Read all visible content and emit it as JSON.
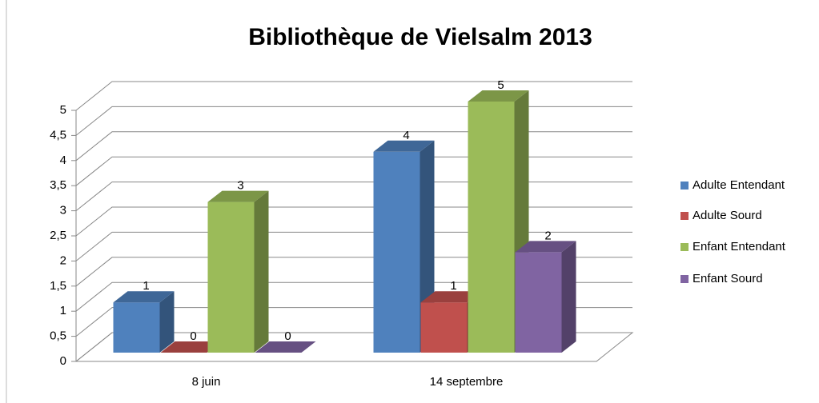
{
  "chart_data": {
    "type": "bar3d",
    "title": "Bibliothèque de Vielsalm 2013",
    "categories": [
      "8 juin",
      "14 septembre"
    ],
    "series": [
      {
        "name": "Adulte Entendant",
        "color": "#4f81bd",
        "values": [
          1,
          4
        ]
      },
      {
        "name": "Adulte Sourd",
        "color": "#c0504d",
        "values": [
          0,
          1
        ]
      },
      {
        "name": "Enfant Entendant",
        "color": "#9bbb59",
        "values": [
          3,
          5
        ]
      },
      {
        "name": "Enfant Sourd",
        "color": "#8064a2",
        "values": [
          0,
          2
        ]
      }
    ],
    "ylim": [
      0,
      5
    ],
    "yticks": [
      0,
      {
        "value": 0.5,
        "label": "0,5"
      },
      1,
      {
        "value": 1.5,
        "label": "1,5"
      },
      2,
      {
        "value": 2.5,
        "label": "2,5"
      },
      3,
      {
        "value": 3.5,
        "label": "3,5"
      },
      4,
      {
        "value": 4.5,
        "label": "4,5"
      },
      5
    ],
    "grid": true,
    "legend": "right"
  }
}
